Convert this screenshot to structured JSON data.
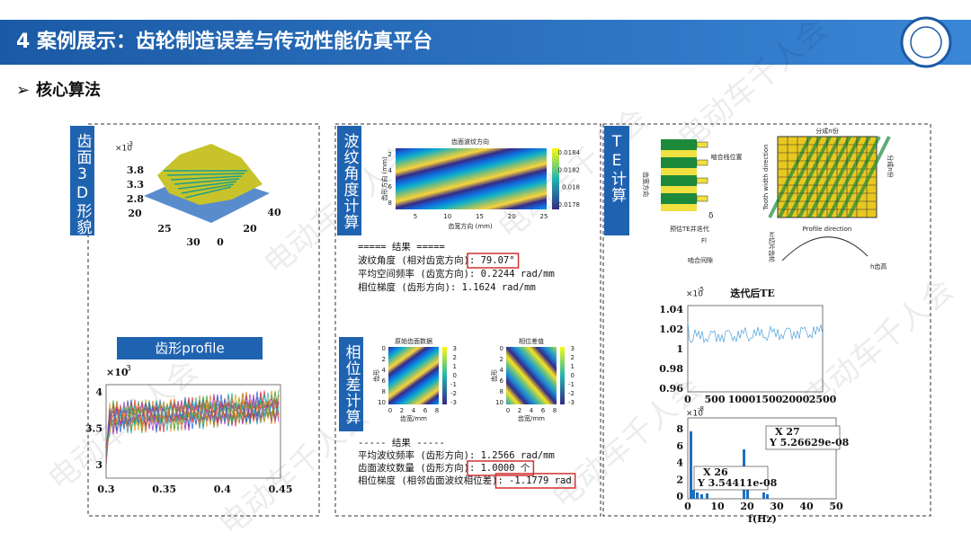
{
  "header": {
    "title": "4 案例展示：齿轮制造误差与传动性能仿真平台",
    "section": "核心算法"
  },
  "watermark": "电动车千人会",
  "panel_surface": {
    "label": "齿面3D形貌",
    "surface": {
      "scale": {
        "base": "×10",
        "power": "-3"
      },
      "zticks": [
        "3.8",
        "3.3",
        "2.8"
      ],
      "xticks": [
        "20",
        "25",
        "30"
      ],
      "yticks": [
        "0",
        "20",
        "40"
      ]
    },
    "profile": {
      "title": "齿形profile",
      "scale": {
        "base": "×10",
        "power": "-3"
      },
      "yticks": [
        "4",
        "3.5",
        "3"
      ],
      "xticks": [
        "0.3",
        "0.35",
        "0.4",
        "0.45"
      ]
    }
  },
  "panel_ripple": {
    "label": "波纹角度计算",
    "plot": {
      "title": "齿面波纹方向",
      "xlabel": "齿宽方向 (mm)",
      "ylabel": "齿形方向 (mm)",
      "xticks": [
        "5",
        "10",
        "15",
        "20",
        "25"
      ],
      "yticks": [
        "2",
        "4",
        "6",
        "8"
      ],
      "colorbar": [
        "0.0184",
        "0.0182",
        "0.018",
        "0.0178"
      ]
    },
    "results": [
      [
        "===== 结果 =====",
        ""
      ],
      [
        "波纹角度 (相对齿宽方向)",
        ": 79.07°"
      ],
      [
        "平均空间频率 (齿宽方向)",
        ": 0.2244 rad/mm"
      ],
      [
        "相位梯度 (齿形方向)",
        ": 1.1624 rad/mm"
      ]
    ]
  },
  "panel_phase": {
    "label": "相位差计算",
    "plots": [
      {
        "title": "原始齿面数据",
        "xlabel": "齿宽/mm",
        "ylabel": "齿形",
        "xticks": [
          "0",
          "2",
          "4",
          "6",
          "8"
        ],
        "yticks": [
          "0",
          "2",
          "4",
          "6",
          "8",
          "10"
        ],
        "colorbar": [
          "3",
          "2",
          "1",
          "0",
          "-1",
          "-2",
          "-3"
        ]
      },
      {
        "title": "相位差值",
        "xlabel": "齿宽/mm",
        "ylabel": "齿形",
        "xticks": [
          "0",
          "2",
          "4",
          "6",
          "8"
        ],
        "yticks": [
          "0",
          "2",
          "4",
          "6",
          "8",
          "10"
        ],
        "colorbar": [
          "3",
          "2",
          "1",
          "0",
          "-1",
          "-2",
          "-3"
        ]
      }
    ],
    "results": [
      [
        "----- 结果 -----",
        ""
      ],
      [
        "平均波纹频率 (齿形方向)",
        ": 1.2566 rad/mm"
      ],
      [
        "齿面波纹数量 (齿形方向)",
        ": 1.0000 个"
      ],
      [
        "相位梯度 (相邻齿面波纹相位差)",
        ": -1.1779 rad"
      ]
    ]
  },
  "panel_te": {
    "label": "TE计算",
    "diagram": {
      "top": "分成n份",
      "width_axis": "Tooth width direction",
      "profile_axis": "Profile direction",
      "mesh_line": "啮合线位置",
      "right": "分成n份",
      "gap": "啮合间隙",
      "delta": "δ",
      "fl": "Fl",
      "width": "齿宽方向",
      "iterate": "预估TE并迭代",
      "slice": "ki切片齿轮",
      "height": "h齿高"
    },
    "te_plot": {
      "title": "迭代后TE",
      "scale": {
        "base": "×10",
        "power": "-5"
      },
      "yticks": [
        "1.04",
        "1.02",
        "1",
        "0.98",
        "0.96"
      ],
      "xticks": [
        "0",
        "500",
        "1000",
        "1500",
        "2000",
        "2500"
      ]
    },
    "spectrum": {
      "scale": {
        "base": "×10",
        "power": "-8"
      },
      "yticks": [
        "8",
        "6",
        "4",
        "2",
        "0"
      ],
      "xticks": [
        "0",
        "10",
        "20",
        "30",
        "40",
        "50"
      ],
      "xlabel": "f(Hz)",
      "tips": [
        {
          "x": "X 27",
          "y": "Y 5.26629e-08"
        },
        {
          "x": "X 26",
          "y": "Y 3.54411e-08"
        }
      ]
    }
  }
}
